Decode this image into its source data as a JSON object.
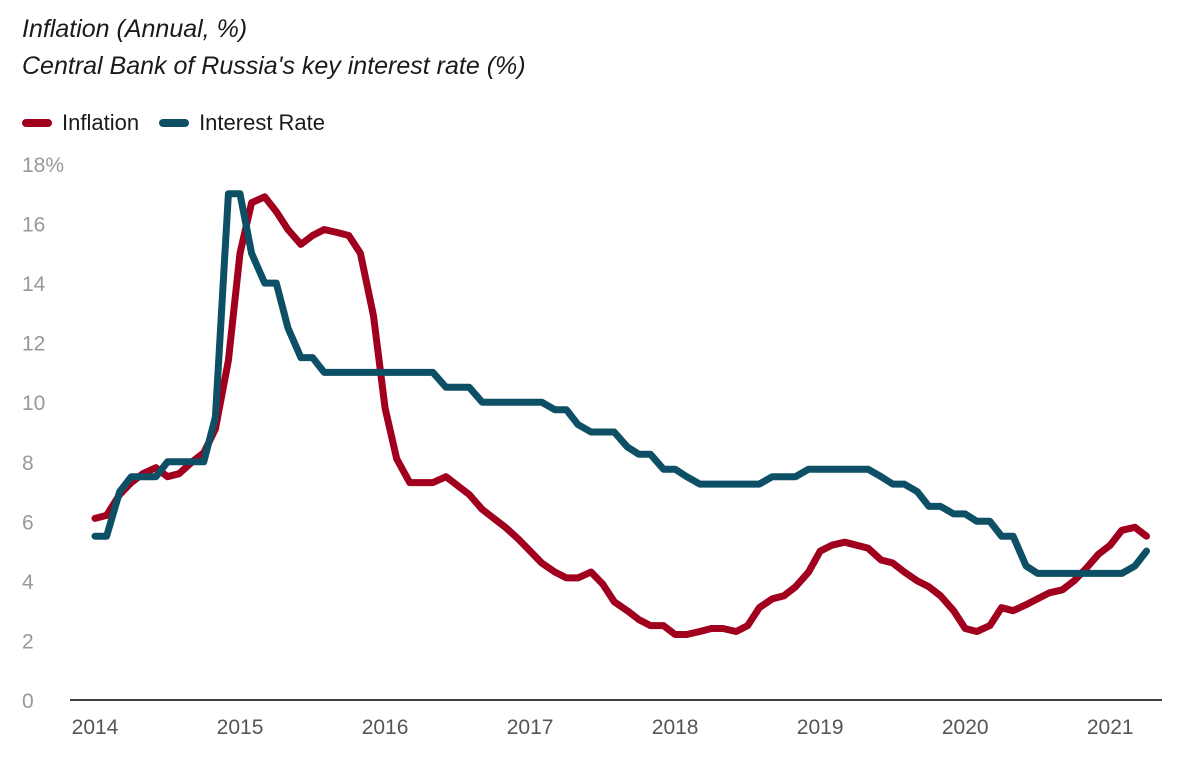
{
  "colors": {
    "inflation": "#A0001E",
    "interest": "#0D5066",
    "axis": "#000000",
    "tick_text": "#999999"
  },
  "chart_data": {
    "type": "line",
    "title": "Inflation (Annual, %)",
    "subtitle": "Central Bank of Russia's key interest rate (%)",
    "legend_position": "top-left",
    "grid": false,
    "ylim": [
      0,
      18
    ],
    "xlim": [
      2014.0,
      2021.35
    ],
    "y_ticks": [
      0,
      2,
      4,
      6,
      8,
      10,
      12,
      14,
      16,
      18
    ],
    "y_tick_labels": [
      "0",
      "2",
      "4",
      "6",
      "8",
      "10",
      "12",
      "14",
      "16",
      "18%"
    ],
    "x_ticks": [
      2014,
      2015,
      2016,
      2017,
      2018,
      2019,
      2020,
      2021
    ],
    "x_tick_labels": [
      "2014",
      "2015",
      "2016",
      "2017",
      "2018",
      "2019",
      "2020",
      "2021"
    ],
    "series": [
      {
        "name": "Inflation",
        "color": "#A0001E",
        "points": [
          [
            2014.0,
            6.1
          ],
          [
            2014.08,
            6.2
          ],
          [
            2014.17,
            6.9
          ],
          [
            2014.25,
            7.3
          ],
          [
            2014.33,
            7.6
          ],
          [
            2014.42,
            7.8
          ],
          [
            2014.5,
            7.5
          ],
          [
            2014.58,
            7.6
          ],
          [
            2014.67,
            8.0
          ],
          [
            2014.75,
            8.3
          ],
          [
            2014.83,
            9.1
          ],
          [
            2014.92,
            11.4
          ],
          [
            2015.0,
            15.0
          ],
          [
            2015.08,
            16.7
          ],
          [
            2015.17,
            16.9
          ],
          [
            2015.25,
            16.4
          ],
          [
            2015.33,
            15.8
          ],
          [
            2015.42,
            15.3
          ],
          [
            2015.5,
            15.6
          ],
          [
            2015.58,
            15.8
          ],
          [
            2015.67,
            15.7
          ],
          [
            2015.75,
            15.6
          ],
          [
            2015.83,
            15.0
          ],
          [
            2015.92,
            12.9
          ],
          [
            2016.0,
            9.8
          ],
          [
            2016.08,
            8.1
          ],
          [
            2016.17,
            7.3
          ],
          [
            2016.25,
            7.3
          ],
          [
            2016.33,
            7.3
          ],
          [
            2016.42,
            7.5
          ],
          [
            2016.5,
            7.2
          ],
          [
            2016.58,
            6.9
          ],
          [
            2016.67,
            6.4
          ],
          [
            2016.75,
            6.1
          ],
          [
            2016.83,
            5.8
          ],
          [
            2016.92,
            5.4
          ],
          [
            2017.0,
            5.0
          ],
          [
            2017.08,
            4.6
          ],
          [
            2017.17,
            4.3
          ],
          [
            2017.25,
            4.1
          ],
          [
            2017.33,
            4.1
          ],
          [
            2017.42,
            4.3
          ],
          [
            2017.5,
            3.9
          ],
          [
            2017.58,
            3.3
          ],
          [
            2017.67,
            3.0
          ],
          [
            2017.75,
            2.7
          ],
          [
            2017.83,
            2.5
          ],
          [
            2017.92,
            2.5
          ],
          [
            2018.0,
            2.2
          ],
          [
            2018.08,
            2.2
          ],
          [
            2018.17,
            2.3
          ],
          [
            2018.25,
            2.4
          ],
          [
            2018.33,
            2.4
          ],
          [
            2018.42,
            2.3
          ],
          [
            2018.5,
            2.5
          ],
          [
            2018.58,
            3.1
          ],
          [
            2018.67,
            3.4
          ],
          [
            2018.75,
            3.5
          ],
          [
            2018.83,
            3.8
          ],
          [
            2018.92,
            4.3
          ],
          [
            2019.0,
            5.0
          ],
          [
            2019.08,
            5.2
          ],
          [
            2019.17,
            5.3
          ],
          [
            2019.25,
            5.2
          ],
          [
            2019.33,
            5.1
          ],
          [
            2019.42,
            4.7
          ],
          [
            2019.5,
            4.6
          ],
          [
            2019.58,
            4.3
          ],
          [
            2019.67,
            4.0
          ],
          [
            2019.75,
            3.8
          ],
          [
            2019.83,
            3.5
          ],
          [
            2019.92,
            3.0
          ],
          [
            2020.0,
            2.4
          ],
          [
            2020.08,
            2.3
          ],
          [
            2020.17,
            2.5
          ],
          [
            2020.25,
            3.1
          ],
          [
            2020.33,
            3.0
          ],
          [
            2020.42,
            3.2
          ],
          [
            2020.5,
            3.4
          ],
          [
            2020.58,
            3.6
          ],
          [
            2020.67,
            3.7
          ],
          [
            2020.75,
            4.0
          ],
          [
            2020.83,
            4.4
          ],
          [
            2020.92,
            4.9
          ],
          [
            2021.0,
            5.2
          ],
          [
            2021.08,
            5.7
          ],
          [
            2021.17,
            5.8
          ],
          [
            2021.25,
            5.5
          ]
        ]
      },
      {
        "name": "Interest Rate",
        "color": "#0D5066",
        "points": [
          [
            2014.0,
            5.5
          ],
          [
            2014.08,
            5.5
          ],
          [
            2014.17,
            7.0
          ],
          [
            2014.25,
            7.5
          ],
          [
            2014.33,
            7.5
          ],
          [
            2014.42,
            7.5
          ],
          [
            2014.5,
            8.0
          ],
          [
            2014.58,
            8.0
          ],
          [
            2014.67,
            8.0
          ],
          [
            2014.75,
            8.0
          ],
          [
            2014.83,
            9.5
          ],
          [
            2014.92,
            17.0
          ],
          [
            2015.0,
            17.0
          ],
          [
            2015.08,
            15.0
          ],
          [
            2015.17,
            14.0
          ],
          [
            2015.25,
            14.0
          ],
          [
            2015.33,
            12.5
          ],
          [
            2015.42,
            11.5
          ],
          [
            2015.5,
            11.5
          ],
          [
            2015.58,
            11.0
          ],
          [
            2015.67,
            11.0
          ],
          [
            2015.75,
            11.0
          ],
          [
            2015.83,
            11.0
          ],
          [
            2015.92,
            11.0
          ],
          [
            2016.0,
            11.0
          ],
          [
            2016.08,
            11.0
          ],
          [
            2016.17,
            11.0
          ],
          [
            2016.25,
            11.0
          ],
          [
            2016.33,
            11.0
          ],
          [
            2016.42,
            10.5
          ],
          [
            2016.5,
            10.5
          ],
          [
            2016.58,
            10.5
          ],
          [
            2016.67,
            10.0
          ],
          [
            2016.75,
            10.0
          ],
          [
            2016.83,
            10.0
          ],
          [
            2016.92,
            10.0
          ],
          [
            2017.0,
            10.0
          ],
          [
            2017.08,
            10.0
          ],
          [
            2017.17,
            9.75
          ],
          [
            2017.25,
            9.75
          ],
          [
            2017.33,
            9.25
          ],
          [
            2017.42,
            9.0
          ],
          [
            2017.5,
            9.0
          ],
          [
            2017.58,
            9.0
          ],
          [
            2017.67,
            8.5
          ],
          [
            2017.75,
            8.25
          ],
          [
            2017.83,
            8.25
          ],
          [
            2017.92,
            7.75
          ],
          [
            2018.0,
            7.75
          ],
          [
            2018.08,
            7.5
          ],
          [
            2018.17,
            7.25
          ],
          [
            2018.25,
            7.25
          ],
          [
            2018.33,
            7.25
          ],
          [
            2018.42,
            7.25
          ],
          [
            2018.5,
            7.25
          ],
          [
            2018.58,
            7.25
          ],
          [
            2018.67,
            7.5
          ],
          [
            2018.75,
            7.5
          ],
          [
            2018.83,
            7.5
          ],
          [
            2018.92,
            7.75
          ],
          [
            2019.0,
            7.75
          ],
          [
            2019.08,
            7.75
          ],
          [
            2019.17,
            7.75
          ],
          [
            2019.25,
            7.75
          ],
          [
            2019.33,
            7.75
          ],
          [
            2019.42,
            7.5
          ],
          [
            2019.5,
            7.25
          ],
          [
            2019.58,
            7.25
          ],
          [
            2019.67,
            7.0
          ],
          [
            2019.75,
            6.5
          ],
          [
            2019.83,
            6.5
          ],
          [
            2019.92,
            6.25
          ],
          [
            2020.0,
            6.25
          ],
          [
            2020.08,
            6.0
          ],
          [
            2020.17,
            6.0
          ],
          [
            2020.25,
            5.5
          ],
          [
            2020.33,
            5.5
          ],
          [
            2020.42,
            4.5
          ],
          [
            2020.5,
            4.25
          ],
          [
            2020.58,
            4.25
          ],
          [
            2020.67,
            4.25
          ],
          [
            2020.75,
            4.25
          ],
          [
            2020.83,
            4.25
          ],
          [
            2020.92,
            4.25
          ],
          [
            2021.0,
            4.25
          ],
          [
            2021.08,
            4.25
          ],
          [
            2021.17,
            4.5
          ],
          [
            2021.25,
            5.0
          ]
        ]
      }
    ]
  }
}
